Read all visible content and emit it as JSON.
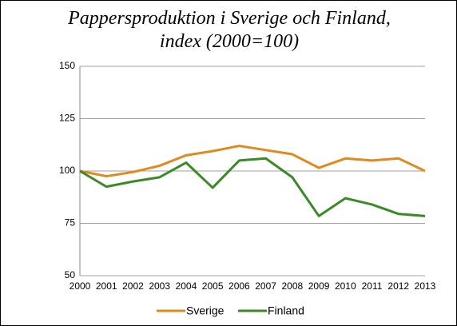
{
  "chart_data": {
    "type": "line",
    "title": "Pappersproduktion i Sverige och Finland, index (2000=100)",
    "categories": [
      "2000",
      "2001",
      "2002",
      "2003",
      "2004",
      "2005",
      "2006",
      "2007",
      "2008",
      "2009",
      "2010",
      "2011",
      "2012",
      "2013"
    ],
    "series": [
      {
        "name": "Sverige",
        "color": "#e08a1e",
        "values": [
          100,
          97.5,
          99.5,
          102.5,
          107.5,
          109.5,
          112,
          110,
          108,
          101.5,
          106,
          105,
          106,
          100
        ]
      },
      {
        "name": "Finland",
        "color": "#3a8a26",
        "values": [
          100,
          92.5,
          95,
          97,
          104,
          92,
          105,
          106,
          97,
          78.5,
          87,
          84,
          79.5,
          78.5
        ]
      }
    ],
    "ylim": [
      50,
      150
    ],
    "yticks": [
      50,
      75,
      100,
      125,
      150
    ],
    "grid": true,
    "legend": "bottom"
  }
}
